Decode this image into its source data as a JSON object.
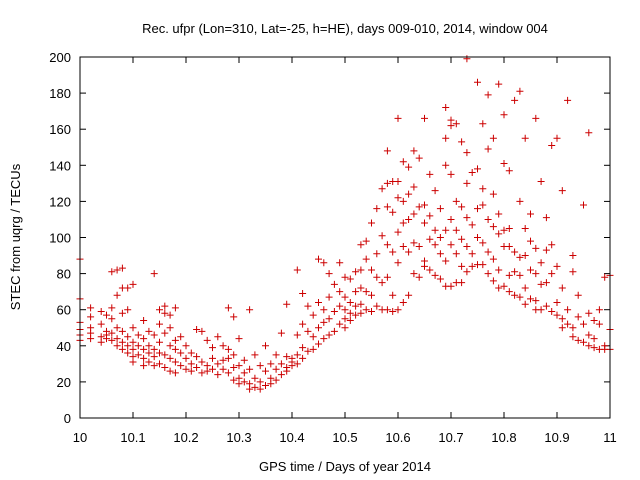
{
  "chart_data": {
    "type": "scatter",
    "title": "Rec. ufpr (Lon=310, Lat=-25, h=HE), days 009-010, 2014, window 004",
    "xlabel": "GPS time / Days of year 2014",
    "ylabel": "STEC from uqrg / TECUs",
    "xlim": [
      10,
      11
    ],
    "ylim": [
      0,
      200
    ],
    "x_ticks": [
      "10",
      "10.1",
      "10.2",
      "10.3",
      "10.4",
      "10.5",
      "10.6",
      "10.7",
      "10.8",
      "10.9",
      "11"
    ],
    "y_ticks": [
      "0",
      "20",
      "40",
      "60",
      "80",
      "100",
      "120",
      "140",
      "160",
      "180",
      "200"
    ],
    "grid": false,
    "marker": "+",
    "color": "#cc0000",
    "points": [
      [
        10.0,
        88
      ],
      [
        10.0,
        66
      ],
      [
        10.0,
        53
      ],
      [
        10.0,
        49
      ],
      [
        10.0,
        46
      ],
      [
        10.0,
        43
      ],
      [
        10.02,
        61
      ],
      [
        10.02,
        56
      ],
      [
        10.02,
        50
      ],
      [
        10.02,
        47
      ],
      [
        10.02,
        44
      ],
      [
        10.04,
        59
      ],
      [
        10.04,
        52
      ],
      [
        10.04,
        45
      ],
      [
        10.04,
        42
      ],
      [
        10.05,
        57
      ],
      [
        10.05,
        48
      ],
      [
        10.05,
        46
      ],
      [
        10.05,
        44
      ],
      [
        10.06,
        81
      ],
      [
        10.06,
        61
      ],
      [
        10.06,
        55
      ],
      [
        10.06,
        47
      ],
      [
        10.06,
        43
      ],
      [
        10.07,
        82
      ],
      [
        10.07,
        68
      ],
      [
        10.07,
        50
      ],
      [
        10.07,
        44
      ],
      [
        10.07,
        40
      ],
      [
        10.08,
        83
      ],
      [
        10.08,
        72
      ],
      [
        10.08,
        58
      ],
      [
        10.08,
        48
      ],
      [
        10.08,
        42
      ],
      [
        10.08,
        38
      ],
      [
        10.09,
        72
      ],
      [
        10.09,
        60
      ],
      [
        10.09,
        45
      ],
      [
        10.09,
        40
      ],
      [
        10.09,
        36
      ],
      [
        10.1,
        74
      ],
      [
        10.1,
        50
      ],
      [
        10.1,
        42
      ],
      [
        10.1,
        38
      ],
      [
        10.1,
        34
      ],
      [
        10.1,
        31
      ],
      [
        10.11,
        46
      ],
      [
        10.11,
        40
      ],
      [
        10.11,
        35
      ],
      [
        10.12,
        54
      ],
      [
        10.12,
        44
      ],
      [
        10.12,
        38
      ],
      [
        10.12,
        33
      ],
      [
        10.12,
        29
      ],
      [
        10.13,
        48
      ],
      [
        10.13,
        40
      ],
      [
        10.13,
        36
      ],
      [
        10.13,
        31
      ],
      [
        10.14,
        80
      ],
      [
        10.14,
        46
      ],
      [
        10.14,
        38
      ],
      [
        10.14,
        34
      ],
      [
        10.14,
        29
      ],
      [
        10.15,
        60
      ],
      [
        10.15,
        52
      ],
      [
        10.15,
        42
      ],
      [
        10.15,
        36
      ],
      [
        10.15,
        30
      ],
      [
        10.16,
        62
      ],
      [
        10.16,
        58
      ],
      [
        10.16,
        47
      ],
      [
        10.16,
        35
      ],
      [
        10.16,
        28
      ],
      [
        10.17,
        57
      ],
      [
        10.17,
        50
      ],
      [
        10.17,
        40
      ],
      [
        10.17,
        33
      ],
      [
        10.17,
        26
      ],
      [
        10.18,
        61
      ],
      [
        10.18,
        43
      ],
      [
        10.18,
        38
      ],
      [
        10.18,
        31
      ],
      [
        10.18,
        25
      ],
      [
        10.19,
        45
      ],
      [
        10.19,
        36
      ],
      [
        10.19,
        29
      ],
      [
        10.2,
        40
      ],
      [
        10.2,
        33
      ],
      [
        10.2,
        27
      ],
      [
        10.21,
        36
      ],
      [
        10.21,
        30
      ],
      [
        10.21,
        26
      ],
      [
        10.22,
        49
      ],
      [
        10.22,
        34
      ],
      [
        10.22,
        28
      ],
      [
        10.23,
        48
      ],
      [
        10.23,
        31
      ],
      [
        10.23,
        25
      ],
      [
        10.24,
        43
      ],
      [
        10.24,
        29
      ],
      [
        10.24,
        26
      ],
      [
        10.25,
        39
      ],
      [
        10.25,
        33
      ],
      [
        10.25,
        27
      ],
      [
        10.26,
        45
      ],
      [
        10.26,
        30
      ],
      [
        10.26,
        24
      ],
      [
        10.27,
        40
      ],
      [
        10.27,
        32
      ],
      [
        10.27,
        27
      ],
      [
        10.28,
        61
      ],
      [
        10.28,
        38
      ],
      [
        10.28,
        33
      ],
      [
        10.28,
        25
      ],
      [
        10.29,
        56
      ],
      [
        10.29,
        35
      ],
      [
        10.29,
        28
      ],
      [
        10.29,
        21
      ],
      [
        10.3,
        44
      ],
      [
        10.3,
        29
      ],
      [
        10.3,
        22
      ],
      [
        10.3,
        19
      ],
      [
        10.31,
        32
      ],
      [
        10.31,
        25
      ],
      [
        10.31,
        20
      ],
      [
        10.32,
        60
      ],
      [
        10.32,
        27
      ],
      [
        10.32,
        19
      ],
      [
        10.32,
        16
      ],
      [
        10.33,
        35
      ],
      [
        10.33,
        22
      ],
      [
        10.33,
        17
      ],
      [
        10.34,
        29
      ],
      [
        10.34,
        20
      ],
      [
        10.34,
        16
      ],
      [
        10.35,
        40
      ],
      [
        10.35,
        26
      ],
      [
        10.35,
        18
      ],
      [
        10.36,
        30
      ],
      [
        10.36,
        22
      ],
      [
        10.36,
        19
      ],
      [
        10.37,
        35
      ],
      [
        10.37,
        27
      ],
      [
        10.37,
        21
      ],
      [
        10.38,
        47
      ],
      [
        10.38,
        30
      ],
      [
        10.38,
        24
      ],
      [
        10.39,
        63
      ],
      [
        10.39,
        34
      ],
      [
        10.39,
        28
      ],
      [
        10.39,
        26
      ],
      [
        10.4,
        33
      ],
      [
        10.4,
        31
      ],
      [
        10.4,
        29
      ],
      [
        10.41,
        82
      ],
      [
        10.41,
        46
      ],
      [
        10.41,
        35
      ],
      [
        10.41,
        30
      ],
      [
        10.42,
        69
      ],
      [
        10.42,
        52
      ],
      [
        10.42,
        39
      ],
      [
        10.42,
        33
      ],
      [
        10.43,
        62
      ],
      [
        10.43,
        48
      ],
      [
        10.43,
        37
      ],
      [
        10.44,
        57
      ],
      [
        10.44,
        45
      ],
      [
        10.44,
        38
      ],
      [
        10.45,
        88
      ],
      [
        10.45,
        64
      ],
      [
        10.45,
        50
      ],
      [
        10.45,
        41
      ],
      [
        10.46,
        86
      ],
      [
        10.46,
        60
      ],
      [
        10.46,
        53
      ],
      [
        10.46,
        44
      ],
      [
        10.47,
        80
      ],
      [
        10.47,
        67
      ],
      [
        10.47,
        55
      ],
      [
        10.47,
        46
      ],
      [
        10.48,
        74
      ],
      [
        10.48,
        59
      ],
      [
        10.48,
        48
      ],
      [
        10.49,
        86
      ],
      [
        10.49,
        70
      ],
      [
        10.49,
        62
      ],
      [
        10.49,
        52
      ],
      [
        10.5,
        78
      ],
      [
        10.5,
        67
      ],
      [
        10.5,
        60
      ],
      [
        10.5,
        55
      ],
      [
        10.5,
        50
      ],
      [
        10.51,
        77
      ],
      [
        10.51,
        64
      ],
      [
        10.51,
        58
      ],
      [
        10.51,
        54
      ],
      [
        10.52,
        81
      ],
      [
        10.52,
        70
      ],
      [
        10.52,
        62
      ],
      [
        10.52,
        57
      ],
      [
        10.53,
        96
      ],
      [
        10.53,
        82
      ],
      [
        10.53,
        72
      ],
      [
        10.53,
        63
      ],
      [
        10.53,
        58
      ],
      [
        10.54,
        98
      ],
      [
        10.54,
        88
      ],
      [
        10.54,
        70
      ],
      [
        10.54,
        60
      ],
      [
        10.55,
        108
      ],
      [
        10.55,
        82
      ],
      [
        10.55,
        68
      ],
      [
        10.55,
        59
      ],
      [
        10.56,
        116
      ],
      [
        10.56,
        91
      ],
      [
        10.56,
        78
      ],
      [
        10.56,
        62
      ],
      [
        10.57,
        127
      ],
      [
        10.57,
        101
      ],
      [
        10.57,
        75
      ],
      [
        10.57,
        60
      ],
      [
        10.58,
        148
      ],
      [
        10.58,
        130
      ],
      [
        10.58,
        117
      ],
      [
        10.58,
        96
      ],
      [
        10.58,
        78
      ],
      [
        10.58,
        60
      ],
      [
        10.59,
        131
      ],
      [
        10.59,
        114
      ],
      [
        10.59,
        92
      ],
      [
        10.59,
        68
      ],
      [
        10.59,
        59
      ],
      [
        10.6,
        166
      ],
      [
        10.6,
        131
      ],
      [
        10.6,
        122
      ],
      [
        10.6,
        103
      ],
      [
        10.6,
        86
      ],
      [
        10.6,
        60
      ],
      [
        10.61,
        142
      ],
      [
        10.61,
        120
      ],
      [
        10.61,
        108
      ],
      [
        10.61,
        95
      ],
      [
        10.61,
        64
      ],
      [
        10.62,
        139
      ],
      [
        10.62,
        124
      ],
      [
        10.62,
        110
      ],
      [
        10.62,
        92
      ],
      [
        10.62,
        68
      ],
      [
        10.63,
        148
      ],
      [
        10.63,
        128
      ],
      [
        10.63,
        113
      ],
      [
        10.63,
        97
      ],
      [
        10.63,
        80
      ],
      [
        10.64,
        144
      ],
      [
        10.64,
        117
      ],
      [
        10.64,
        95
      ],
      [
        10.64,
        78
      ],
      [
        10.65,
        166
      ],
      [
        10.65,
        118
      ],
      [
        10.65,
        108
      ],
      [
        10.65,
        87
      ],
      [
        10.65,
        84
      ],
      [
        10.66,
        135
      ],
      [
        10.66,
        112
      ],
      [
        10.66,
        99
      ],
      [
        10.66,
        82
      ],
      [
        10.67,
        126
      ],
      [
        10.67,
        104
      ],
      [
        10.67,
        96
      ],
      [
        10.67,
        79
      ],
      [
        10.68,
        116
      ],
      [
        10.68,
        100
      ],
      [
        10.68,
        91
      ],
      [
        10.68,
        77
      ],
      [
        10.69,
        172
      ],
      [
        10.69,
        155
      ],
      [
        10.69,
        140
      ],
      [
        10.69,
        104
      ],
      [
        10.69,
        87
      ],
      [
        10.69,
        73
      ],
      [
        10.7,
        165
      ],
      [
        10.7,
        162
      ],
      [
        10.7,
        135
      ],
      [
        10.7,
        110
      ],
      [
        10.7,
        96
      ],
      [
        10.7,
        73
      ],
      [
        10.71,
        163
      ],
      [
        10.71,
        120
      ],
      [
        10.71,
        104
      ],
      [
        10.71,
        91
      ],
      [
        10.71,
        75
      ],
      [
        10.72,
        153
      ],
      [
        10.72,
        117
      ],
      [
        10.72,
        99
      ],
      [
        10.72,
        84
      ],
      [
        10.72,
        75
      ],
      [
        10.73,
        199
      ],
      [
        10.73,
        147
      ],
      [
        10.73,
        130
      ],
      [
        10.73,
        111
      ],
      [
        10.73,
        95
      ],
      [
        10.73,
        81
      ],
      [
        10.74,
        136
      ],
      [
        10.74,
        107
      ],
      [
        10.74,
        91
      ],
      [
        10.74,
        84
      ],
      [
        10.75,
        186
      ],
      [
        10.75,
        138
      ],
      [
        10.75,
        116
      ],
      [
        10.75,
        100
      ],
      [
        10.75,
        85
      ],
      [
        10.76,
        163
      ],
      [
        10.76,
        127
      ],
      [
        10.76,
        118
      ],
      [
        10.76,
        97
      ],
      [
        10.76,
        85
      ],
      [
        10.77,
        179
      ],
      [
        10.77,
        149
      ],
      [
        10.77,
        110
      ],
      [
        10.77,
        92
      ],
      [
        10.77,
        80
      ],
      [
        10.78,
        155
      ],
      [
        10.78,
        124
      ],
      [
        10.78,
        106
      ],
      [
        10.78,
        88
      ],
      [
        10.78,
        76
      ],
      [
        10.79,
        185
      ],
      [
        10.79,
        113
      ],
      [
        10.79,
        102
      ],
      [
        10.79,
        82
      ],
      [
        10.79,
        72
      ],
      [
        10.8,
        168
      ],
      [
        10.8,
        141
      ],
      [
        10.8,
        104
      ],
      [
        10.8,
        95
      ],
      [
        10.8,
        73
      ],
      [
        10.81,
        137
      ],
      [
        10.81,
        105
      ],
      [
        10.81,
        95
      ],
      [
        10.81,
        79
      ],
      [
        10.81,
        70
      ],
      [
        10.82,
        176
      ],
      [
        10.82,
        92
      ],
      [
        10.82,
        81
      ],
      [
        10.82,
        68
      ],
      [
        10.83,
        181
      ],
      [
        10.83,
        120
      ],
      [
        10.83,
        89
      ],
      [
        10.83,
        79
      ],
      [
        10.83,
        67
      ],
      [
        10.84,
        155
      ],
      [
        10.84,
        105
      ],
      [
        10.84,
        90
      ],
      [
        10.84,
        72
      ],
      [
        10.84,
        63
      ],
      [
        10.85,
        113
      ],
      [
        10.85,
        98
      ],
      [
        10.85,
        82
      ],
      [
        10.85,
        66
      ],
      [
        10.86,
        166
      ],
      [
        10.86,
        94
      ],
      [
        10.86,
        80
      ],
      [
        10.86,
        65
      ],
      [
        10.86,
        60
      ],
      [
        10.87,
        131
      ],
      [
        10.87,
        86
      ],
      [
        10.87,
        74
      ],
      [
        10.87,
        60
      ],
      [
        10.88,
        111
      ],
      [
        10.88,
        93
      ],
      [
        10.88,
        75
      ],
      [
        10.88,
        62
      ],
      [
        10.89,
        151
      ],
      [
        10.89,
        96
      ],
      [
        10.89,
        80
      ],
      [
        10.89,
        59
      ],
      [
        10.9,
        155
      ],
      [
        10.9,
        84
      ],
      [
        10.9,
        64
      ],
      [
        10.9,
        57
      ],
      [
        10.91,
        126
      ],
      [
        10.91,
        72
      ],
      [
        10.91,
        55
      ],
      [
        10.91,
        50
      ],
      [
        10.92,
        176
      ],
      [
        10.92,
        60
      ],
      [
        10.92,
        52
      ],
      [
        10.93,
        90
      ],
      [
        10.93,
        81
      ],
      [
        10.93,
        50
      ],
      [
        10.93,
        45
      ],
      [
        10.94,
        68
      ],
      [
        10.94,
        56
      ],
      [
        10.94,
        43
      ],
      [
        10.95,
        118
      ],
      [
        10.95,
        52
      ],
      [
        10.95,
        42
      ],
      [
        10.96,
        158
      ],
      [
        10.96,
        58
      ],
      [
        10.96,
        46
      ],
      [
        10.96,
        40
      ],
      [
        10.97,
        54
      ],
      [
        10.97,
        44
      ],
      [
        10.97,
        39
      ],
      [
        10.98,
        60
      ],
      [
        10.98,
        52
      ],
      [
        10.98,
        38
      ],
      [
        10.99,
        78
      ],
      [
        10.99,
        40
      ],
      [
        10.99,
        38
      ],
      [
        11.0,
        79
      ],
      [
        11.0,
        49
      ],
      [
        11.0,
        38
      ]
    ]
  }
}
